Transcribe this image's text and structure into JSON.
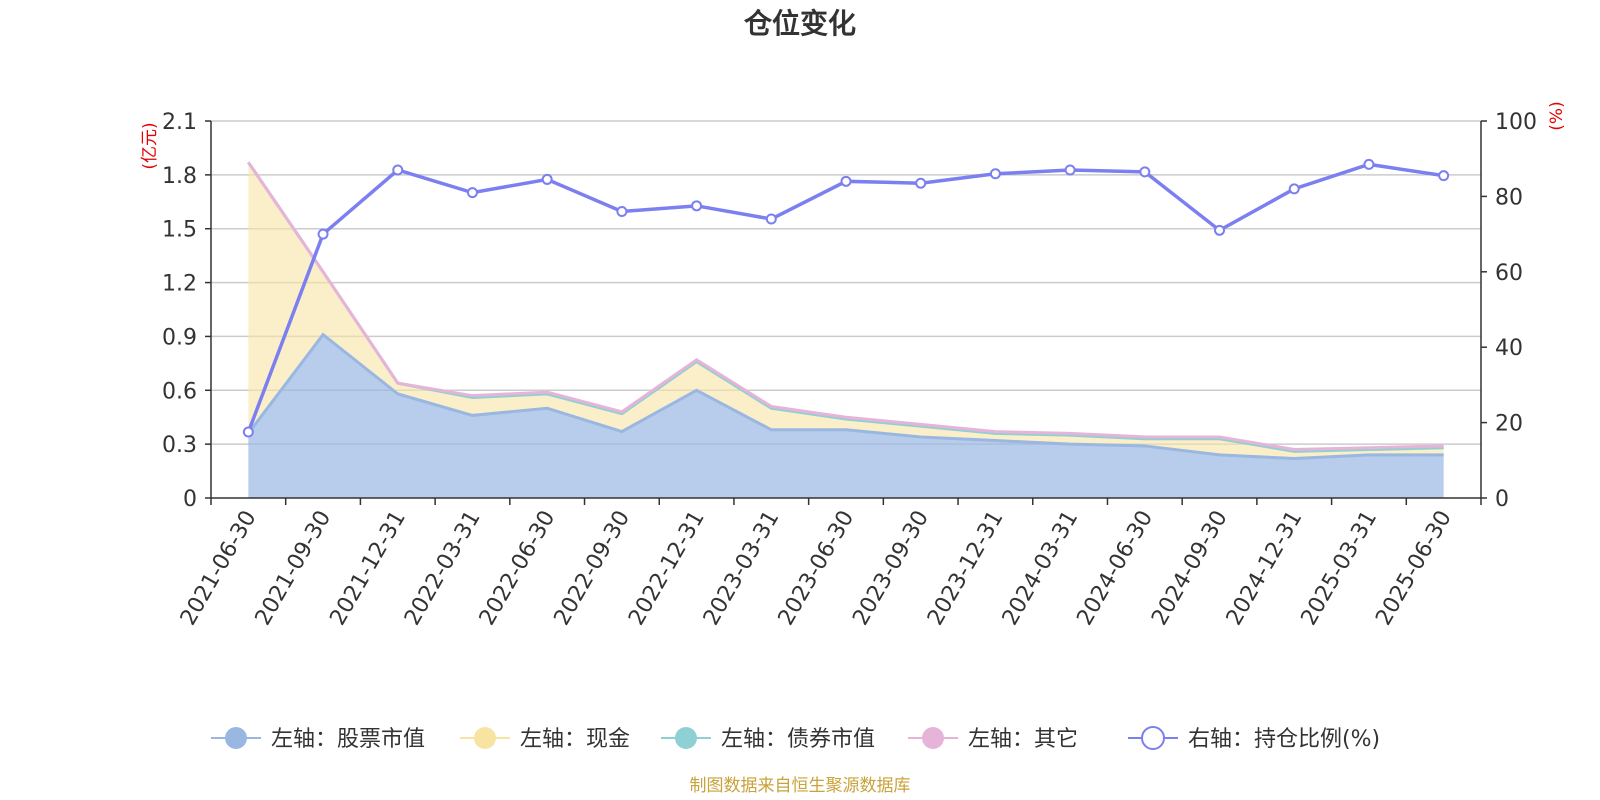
{
  "chart_data": {
    "type": "area",
    "title": "仓位变化",
    "left_axis_unit": "(亿元)",
    "right_axis_unit": "(%)",
    "categories": [
      "2021-06-30",
      "2021-09-30",
      "2021-12-31",
      "2022-03-31",
      "2022-06-30",
      "2022-09-30",
      "2022-12-31",
      "2023-03-31",
      "2023-06-30",
      "2023-09-30",
      "2023-12-31",
      "2024-03-31",
      "2024-06-30",
      "2024-09-30",
      "2024-12-31",
      "2025-03-31",
      "2025-06-30"
    ],
    "left_ylim": [
      0,
      2.1
    ],
    "left_ticks": [
      "0",
      "0.3",
      "0.6",
      "0.9",
      "1.2",
      "1.5",
      "1.8",
      "2.1"
    ],
    "right_ylim": [
      0,
      100
    ],
    "right_ticks": [
      "0",
      "20",
      "40",
      "60",
      "80",
      "100"
    ],
    "grid": true,
    "legend_position": "bottom",
    "series": [
      {
        "name": "左轴：股票市值",
        "axis": "left",
        "kind": "stacked-area",
        "color": "#9ab7e2",
        "values": [
          0.36,
          0.91,
          0.58,
          0.46,
          0.5,
          0.37,
          0.6,
          0.38,
          0.38,
          0.34,
          0.32,
          0.3,
          0.29,
          0.24,
          0.22,
          0.24,
          0.24
        ]
      },
      {
        "name": "左轴：现金",
        "axis": "left",
        "kind": "stacked-area",
        "color": "#f7e4a3",
        "values": [
          1.51,
          0.35,
          0.06,
          0.1,
          0.08,
          0.1,
          0.16,
          0.12,
          0.06,
          0.06,
          0.04,
          0.05,
          0.04,
          0.09,
          0.04,
          0.03,
          0.04
        ]
      },
      {
        "name": "左轴：债券市值",
        "axis": "left",
        "kind": "stacked-area",
        "color": "#8fd0d5",
        "values": [
          0,
          0,
          0,
          0,
          0,
          0,
          0,
          0,
          0,
          0,
          0,
          0,
          0,
          0,
          0,
          0,
          0
        ]
      },
      {
        "name": "左轴：其它",
        "axis": "left",
        "kind": "stacked-area",
        "color": "#e6b4d8",
        "values": [
          0,
          0,
          0,
          0.01,
          0.01,
          0.01,
          0.01,
          0.01,
          0.01,
          0.01,
          0.01,
          0.01,
          0.01,
          0.01,
          0.01,
          0.01,
          0.01
        ]
      },
      {
        "name": "右轴：持仓比例(%)",
        "axis": "right",
        "kind": "line",
        "color": "#7b7ff0",
        "values": [
          17.5,
          70,
          87,
          81,
          84.5,
          76,
          77.5,
          74,
          84,
          83.5,
          86,
          87,
          86.5,
          71,
          82,
          88.5,
          85.5
        ]
      }
    ]
  },
  "source_note": "制图数据来自恒生聚源数据库"
}
